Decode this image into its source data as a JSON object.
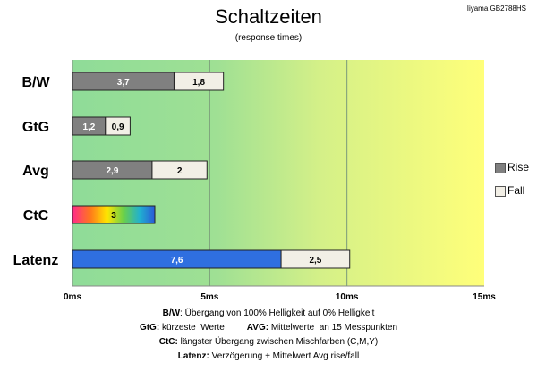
{
  "title": "Schaltzeiten",
  "subtitle": "(response times)",
  "model": "Iiyama GB2788HS",
  "chart_data": {
    "type": "bar",
    "orientation": "horizontal",
    "stacked": true,
    "categories": [
      "B/W",
      "GtG",
      "Avg",
      "CtC",
      "Latenz"
    ],
    "series": [
      {
        "name": "Rise",
        "values": [
          3.7,
          1.2,
          2.9,
          3,
          7.6
        ],
        "labels": [
          "3,7",
          "1,2",
          "2,9",
          "3",
          "7,6"
        ],
        "color": "#808080"
      },
      {
        "name": "Fall",
        "values": [
          1.8,
          0.9,
          2,
          null,
          2.5
        ],
        "labels": [
          "1,8",
          "0,9",
          "2",
          "",
          "2,5"
        ],
        "color": "#f2efe6"
      }
    ],
    "special_colors": {
      "CtC": "rainbow",
      "Latenz": "#2f6fe0"
    },
    "x_ticks": [
      "0ms",
      "5ms",
      "10ms",
      "15ms"
    ],
    "xlim": [
      0,
      15
    ],
    "gridlines": [
      5,
      10
    ],
    "background_gradient": [
      "#8fdc98",
      "#ffff7a"
    ],
    "legend_position": "right"
  },
  "notes": [
    {
      "bold": "B/W",
      "text": ":  Übergang von 100% Helligkeit auf 0% Helligkeit"
    },
    {
      "bold": "GtG:",
      "text": " kürzeste  Werte         ",
      "bold2": "AVG:",
      "text2": " Mittelwerte  an 15 Messpunkten"
    },
    {
      "bold": "CtC:",
      "text": " längster Übergang  zwischen Mischfarben  (C,M,Y)"
    },
    {
      "bold": "Latenz:",
      "text": " Verzögerung  + Mittelwert Avg rise/fall"
    }
  ]
}
